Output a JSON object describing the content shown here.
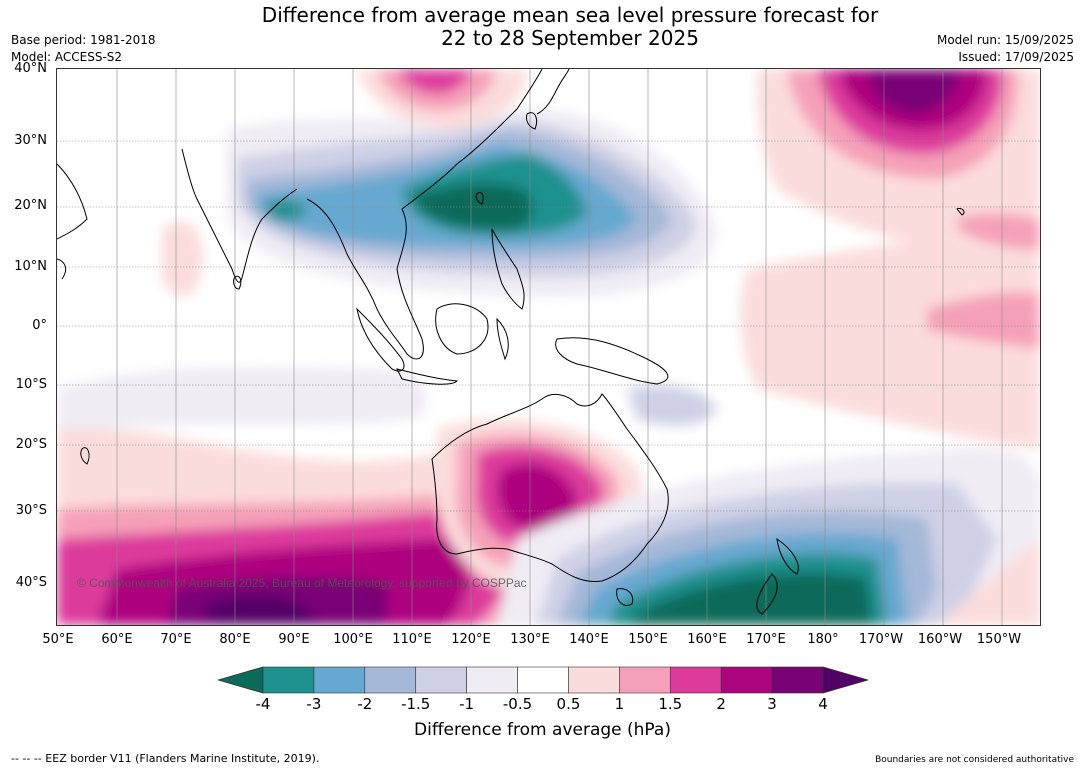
{
  "title_line1": "Difference from average mean sea level pressure forecast for",
  "title_line2": "22 to 28 September 2025",
  "base_period": "Base period: 1981-2018",
  "model": "Model: ACCESS-S2",
  "model_run": "Model run: 15/09/2025",
  "issued": "Issued: 17/09/2025",
  "lat_labels": [
    "40°N",
    "30°N",
    "20°N",
    "10°N",
    "0°",
    "10°S",
    "20°S",
    "30°S",
    "40°S"
  ],
  "lon_labels": [
    "50°E",
    "60°E",
    "70°E",
    "80°E",
    "90°E",
    "100°E",
    "110°E",
    "120°E",
    "130°E",
    "140°E",
    "150°E",
    "160°E",
    "170°E",
    "180°",
    "170°W",
    "160°W",
    "150°W"
  ],
  "copyright": "© Commonwealth of Australia 2025, Bureau of Meteorology, supported by COSPPac",
  "colorbar": {
    "ticks": [
      "-4",
      "-3",
      "-2",
      "-1.5",
      "-1",
      "-0.5",
      "0.5",
      "1",
      "1.5",
      "2",
      "3",
      "4"
    ],
    "colors": [
      "#0b6a5a",
      "#1c918e",
      "#66a8d0",
      "#a4b8d8",
      "#cfd0e6",
      "#efecf4",
      "#ffffff",
      "#fbdcdc",
      "#f5a0b9",
      "#dd3b9c",
      "#ad047f",
      "#790274",
      "#520066"
    ],
    "label": "Difference from average (hPa)"
  },
  "footer_left": "--  --  -- EEZ border V11 (Flanders Marine Institute, 2019).",
  "footer_right": "Boundaries are not considered authoritative"
}
